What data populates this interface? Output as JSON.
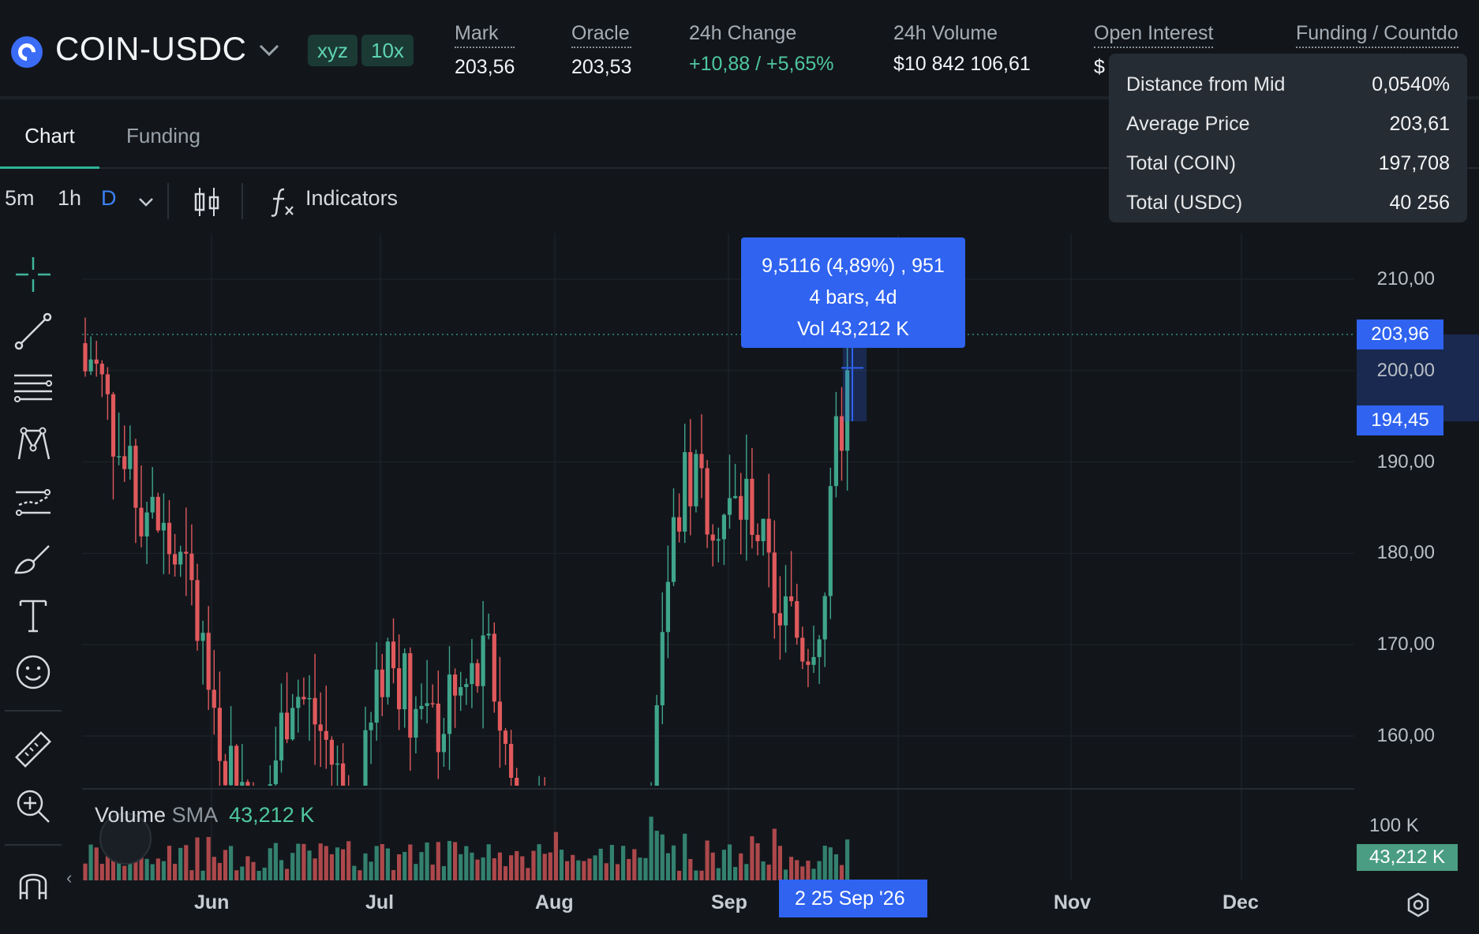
{
  "header": {
    "pair": "COIN-USDC",
    "tags": [
      "xyz",
      "10x"
    ],
    "stats": [
      {
        "label": "Mark",
        "value": "203,56",
        "dotted": true
      },
      {
        "label": "Oracle",
        "value": "203,53",
        "dotted": true
      },
      {
        "label": "24h Change",
        "value": "+10,88 / +5,65%",
        "dotted": false,
        "positive": true
      },
      {
        "label": "24h Volume",
        "value": "$10 842 106,61",
        "dotted": false
      },
      {
        "label": "Open Interest",
        "value": "$",
        "dotted": true
      },
      {
        "label": "Funding / Countdo",
        "value": "",
        "dotted": true
      }
    ]
  },
  "tabs": [
    {
      "label": "Chart",
      "active": true
    },
    {
      "label": "Funding",
      "active": false
    }
  ],
  "toolbar": {
    "intervals": [
      "5m",
      "1h",
      "D"
    ],
    "active_interval": "D",
    "indicators_label": "Indicators"
  },
  "tools": [
    "crosshair-icon",
    "trendline-icon",
    "fib-lines-icon",
    "pattern-icon",
    "forecast-icon",
    "brush-icon",
    "text-icon",
    "emoji-icon",
    "ruler-icon",
    "zoom-in-icon",
    "magnet-icon"
  ],
  "depth_popup": {
    "rows": [
      {
        "label": "Distance from Mid",
        "value": "0,0540%"
      },
      {
        "label": "Average Price",
        "value": "203,61"
      },
      {
        "label": "Total (COIN)",
        "value": "197,708"
      },
      {
        "label": "Total (USDC)",
        "value": "40 256"
      }
    ]
  },
  "measure_tooltip": {
    "line1": "9,5116 (4,89%) , 951",
    "line2": "4 bars, 4d",
    "line3": "Vol 43,212 K"
  },
  "price_axis": {
    "ticks": [
      "210,00",
      "200,00",
      "190,00",
      "180,00",
      "170,00",
      "160,00"
    ],
    "tick_values": [
      210,
      200,
      190,
      180,
      170,
      160
    ],
    "tag_top": "203,96",
    "tag_bottom": "194,45"
  },
  "volume": {
    "label_a": "Volume",
    "label_b": "SMA",
    "sma_value": "43,212 K",
    "axis_100k": "100 K",
    "tag": "43,212 K"
  },
  "time_axis": {
    "months": [
      "Jun",
      "Jul",
      "Aug",
      "Sep",
      "Nov",
      "Dec"
    ],
    "date_tag": "2  25 Sep '26"
  },
  "colors": {
    "up": "#3fa58b",
    "down": "#e0595c",
    "accent": "#2f63f0"
  }
}
